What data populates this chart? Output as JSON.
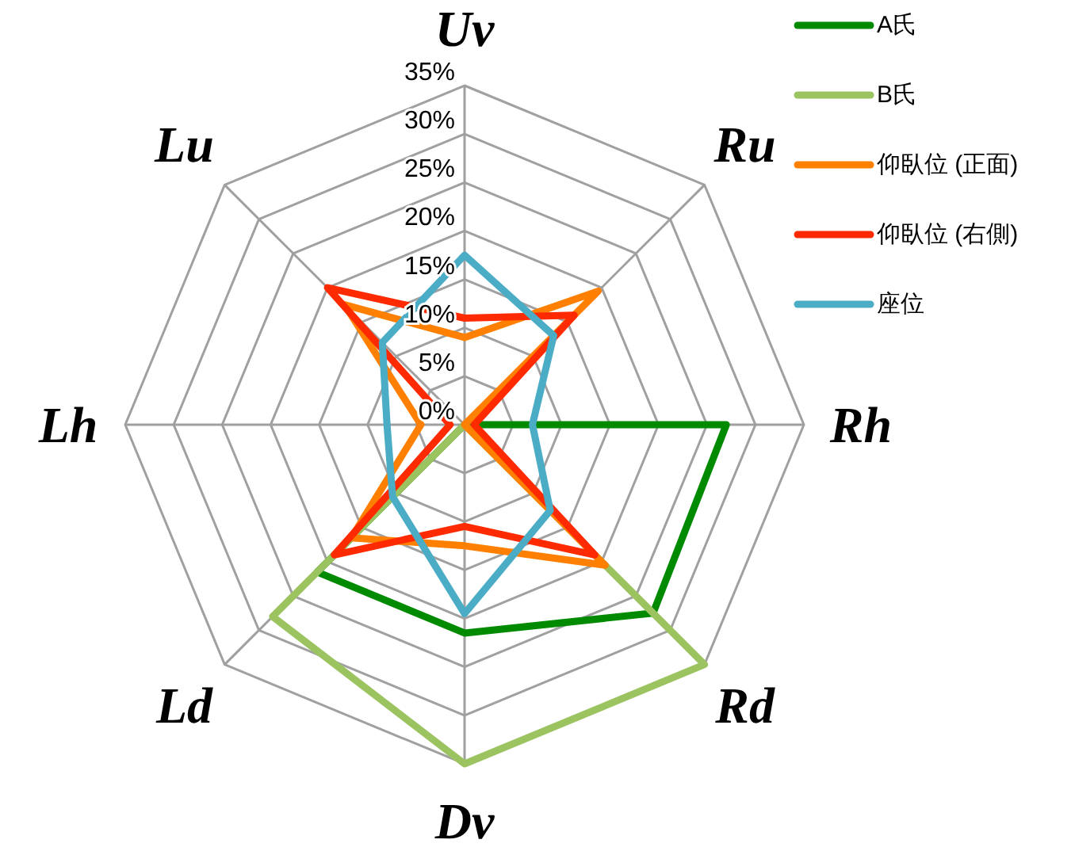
{
  "chart_data": {
    "type": "radar",
    "categories": [
      "Uv",
      "Ru",
      "Rh",
      "Rd",
      "Dv",
      "Ld",
      "Lh",
      "Lu"
    ],
    "series": [
      {
        "name": "A氏",
        "color": "#008a00",
        "values": [
          0,
          0,
          27,
          27.5,
          21.5,
          21.5,
          0,
          0
        ]
      },
      {
        "name": "B氏",
        "color": "#9bc461",
        "values": [
          0,
          0,
          0,
          35,
          35,
          28,
          0,
          0
        ]
      },
      {
        "name": "仰臥位 (正面)",
        "color": "#ff8000",
        "values": [
          9,
          19.5,
          0,
          20.5,
          12.5,
          16.5,
          4.5,
          17.5
        ]
      },
      {
        "name": "仰臥位 (右側)",
        "color": "#ff2a00",
        "values": [
          11,
          16,
          1,
          19,
          10.5,
          19,
          1.5,
          20
        ]
      },
      {
        "name": "座位",
        "color": "#4bacc6",
        "values": [
          17.5,
          13,
          7,
          12.5,
          19.5,
          10.5,
          8,
          12
        ]
      }
    ],
    "ylim": [
      0,
      35
    ],
    "yticks": [
      {
        "value": 0,
        "label": "0%"
      },
      {
        "value": 5,
        "label": "5%"
      },
      {
        "value": 10,
        "label": "10%"
      },
      {
        "value": 15,
        "label": "15%"
      },
      {
        "value": 20,
        "label": "20%"
      },
      {
        "value": 25,
        "label": "25%"
      },
      {
        "value": 30,
        "label": "30%"
      },
      {
        "value": 35,
        "label": "35%"
      }
    ],
    "grid": true,
    "legend": "top right"
  }
}
